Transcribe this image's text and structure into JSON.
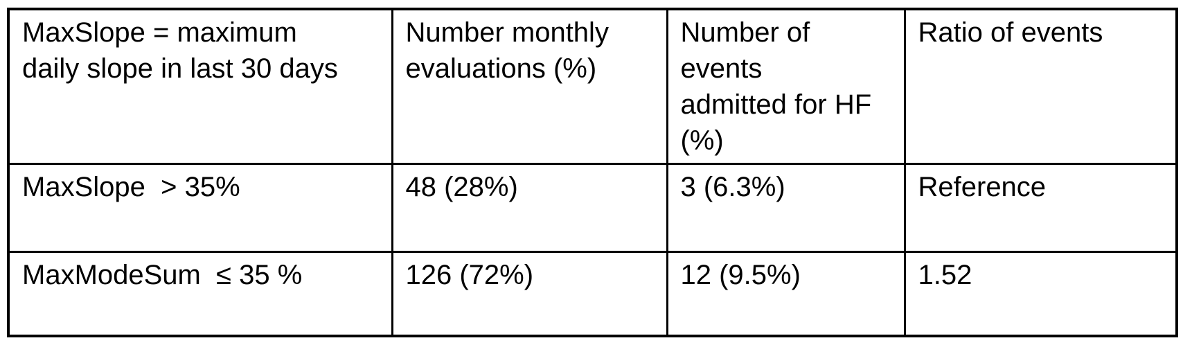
{
  "colors": {
    "background": "#ffffff",
    "border": "#000000",
    "text": "#000000"
  },
  "table": {
    "headers": [
      "MaxSlope = maximum\ndaily slope in last 30 days",
      "Number monthly\nevaluations (%)",
      "Number of\nevents\nadmitted for HF\n(%)",
      "Ratio of events"
    ],
    "rows": [
      [
        "MaxSlope  > 35%",
        "48 (28%)",
        "3 (6.3%)",
        "Reference"
      ],
      [
        "MaxModeSum  ≤ 35 %",
        "126 (72%)",
        "12 (9.5%)",
        "1.52"
      ]
    ]
  },
  "chart_data": {
    "type": "table",
    "columns": [
      "MaxSlope = maximum daily slope in last 30 days",
      "Number monthly evaluations (%)",
      "Number of events admitted for HF (%)",
      "Ratio of events"
    ],
    "rows": [
      {
        "group": "MaxSlope > 35%",
        "number_monthly_evaluations": "48 (28%)",
        "number_events_admitted_for_hf": "3 (6.3%)",
        "ratio_of_events": "Reference"
      },
      {
        "group": "MaxModeSum ≤ 35 %",
        "number_monthly_evaluations": "126 (72%)",
        "number_events_admitted_for_hf": "12 (9.5%)",
        "ratio_of_events": "1.52"
      }
    ]
  }
}
